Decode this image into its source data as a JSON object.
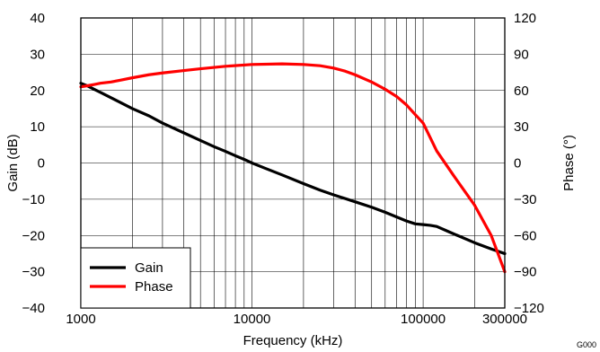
{
  "chart_data": {
    "type": "line",
    "title": "",
    "xlabel": "Frequency (kHz)",
    "ylabel": "Gain (dB)",
    "y2label": "Phase (°)",
    "xscale": "log",
    "xlim": [
      1000,
      300000
    ],
    "ylim": [
      -40,
      40
    ],
    "y2lim": [
      -120,
      120
    ],
    "grid": true,
    "legend_position": "bottom-left",
    "x_ticks": [
      {
        "value": 1000,
        "label": "1000"
      },
      {
        "value": 10000,
        "label": "10000"
      },
      {
        "value": 100000,
        "label": "100000"
      },
      {
        "value": 300000,
        "label": "300000"
      }
    ],
    "y_ticks": [
      {
        "value": 40,
        "label": "40"
      },
      {
        "value": 30,
        "label": "30"
      },
      {
        "value": 20,
        "label": "20"
      },
      {
        "value": 10,
        "label": "10"
      },
      {
        "value": 0,
        "label": "0"
      },
      {
        "value": -10,
        "label": "−10"
      },
      {
        "value": -20,
        "label": "−20"
      },
      {
        "value": -30,
        "label": "−30"
      },
      {
        "value": -40,
        "label": "−40"
      }
    ],
    "y2_ticks": [
      {
        "value": 120,
        "label": "120"
      },
      {
        "value": 90,
        "label": "90"
      },
      {
        "value": 60,
        "label": "60"
      },
      {
        "value": 30,
        "label": "30"
      },
      {
        "value": 0,
        "label": "0"
      },
      {
        "value": -30,
        "label": "−30"
      },
      {
        "value": -60,
        "label": "−60"
      },
      {
        "value": -90,
        "label": "−90"
      },
      {
        "value": -120,
        "label": "−120"
      }
    ],
    "series": [
      {
        "name": "Gain",
        "axis": "left",
        "color": "#000000",
        "x": [
          1000,
          1100,
          1200,
          1300,
          1500,
          1700,
          2000,
          2500,
          3000,
          4000,
          5000,
          6000,
          7000,
          8000,
          9000,
          10000,
          12000,
          15000,
          20000,
          25000,
          30000,
          40000,
          50000,
          60000,
          70000,
          80000,
          90000,
          100000,
          110000,
          120000,
          150000,
          200000,
          250000,
          300000
        ],
        "y": [
          22,
          21.2,
          20.3,
          19.5,
          18,
          16.7,
          15,
          13,
          11,
          8.3,
          6.2,
          4.5,
          3.2,
          2,
          1,
          0,
          -1.5,
          -3.3,
          -5.7,
          -7.5,
          -8.8,
          -10.7,
          -12.2,
          -13.6,
          -14.9,
          -16,
          -16.8,
          -17,
          -17.2,
          -17.5,
          -19.5,
          -22,
          -23.7,
          -25
        ]
      },
      {
        "name": "Phase",
        "axis": "right",
        "color": "#ff0000",
        "x": [
          1000,
          1100,
          1200,
          1300,
          1500,
          1700,
          2000,
          2500,
          3000,
          4000,
          5000,
          7000,
          10000,
          15000,
          20000,
          25000,
          30000,
          35000,
          40000,
          50000,
          60000,
          70000,
          80000,
          90000,
          100000,
          120000,
          150000,
          200000,
          250000,
          300000
        ],
        "y": [
          63,
          64,
          65,
          66,
          67,
          68.5,
          70.5,
          73,
          74.5,
          76.5,
          78,
          80,
          81.5,
          82,
          81.5,
          80.5,
          78.5,
          76,
          73,
          67,
          61,
          55,
          48,
          40,
          33,
          10,
          -10,
          -35,
          -60,
          -90
        ]
      }
    ]
  },
  "corner_label": "G000"
}
